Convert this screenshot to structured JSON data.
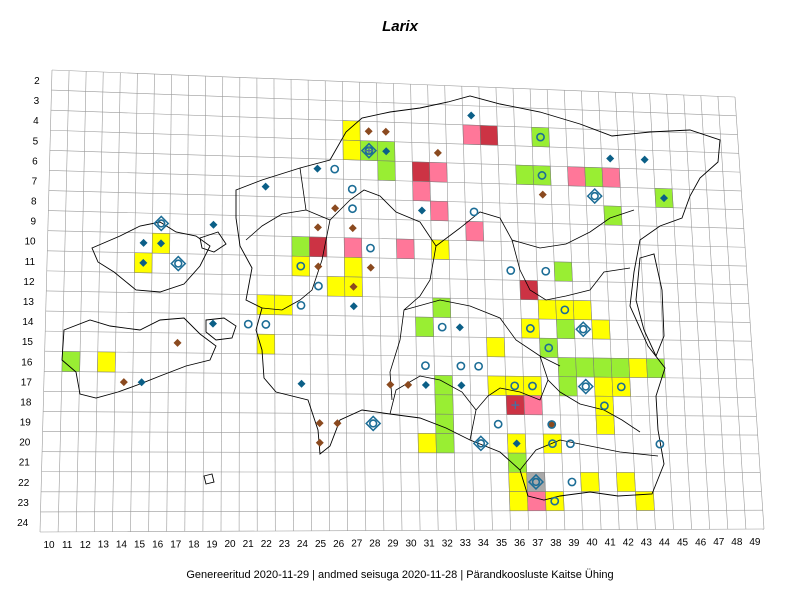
{
  "title": "Larix",
  "footer": "Genereeritud 2020-11-29  |  andmed seisuga 2020-11-28  |  Pärandkoosluste Kaitse Ühing",
  "grid": {
    "columns": [
      10,
      11,
      12,
      13,
      14,
      15,
      16,
      17,
      18,
      19,
      20,
      21,
      22,
      23,
      24,
      25,
      26,
      27,
      28,
      29,
      30,
      31,
      32,
      33,
      34,
      35,
      36,
      37,
      38,
      39,
      40,
      41,
      42,
      43,
      44,
      45,
      46,
      47,
      48,
      49
    ],
    "rows": [
      2,
      3,
      4,
      5,
      6,
      7,
      8,
      9,
      10,
      11,
      12,
      13,
      14,
      15,
      16,
      17,
      18,
      19,
      20,
      21,
      22,
      23,
      24
    ]
  },
  "colors": {
    "yellow": "#ffff00",
    "green": "#99ee33",
    "pink": "#ff7799",
    "red": "#cc3344",
    "gray": "#aaaaaa",
    "diamond_blue": "#0b5f87",
    "diamond_brown": "#8b4a1f",
    "circle_blue": "#1c6d96"
  },
  "squares": [
    {
      "col": 27,
      "row": 4,
      "color": "yellow"
    },
    {
      "col": 27,
      "row": 5,
      "color": "yellow"
    },
    {
      "col": 28,
      "row": 5,
      "color": "green"
    },
    {
      "col": 29,
      "row": 5,
      "color": "green"
    },
    {
      "col": 29,
      "row": 6,
      "color": "green"
    },
    {
      "col": 31,
      "row": 6,
      "color": "red"
    },
    {
      "col": 31,
      "row": 7,
      "color": "pink"
    },
    {
      "col": 32,
      "row": 6,
      "color": "pink"
    },
    {
      "col": 32,
      "row": 8,
      "color": "pink"
    },
    {
      "col": 34,
      "row": 4,
      "color": "pink"
    },
    {
      "col": 35,
      "row": 4,
      "color": "red"
    },
    {
      "col": 34,
      "row": 9,
      "color": "pink"
    },
    {
      "col": 38,
      "row": 4,
      "color": "green"
    },
    {
      "col": 37,
      "row": 6,
      "color": "green"
    },
    {
      "col": 38,
      "row": 6,
      "color": "green"
    },
    {
      "col": 40,
      "row": 6,
      "color": "pink"
    },
    {
      "col": 41,
      "row": 6,
      "color": "green"
    },
    {
      "col": 42,
      "row": 6,
      "color": "pink"
    },
    {
      "col": 42,
      "row": 8,
      "color": "green"
    },
    {
      "col": 45,
      "row": 7,
      "color": "green"
    },
    {
      "col": 25,
      "row": 10,
      "color": "red"
    },
    {
      "col": 24,
      "row": 10,
      "color": "green"
    },
    {
      "col": 27,
      "row": 10,
      "color": "pink"
    },
    {
      "col": 30,
      "row": 10,
      "color": "pink"
    },
    {
      "col": 32,
      "row": 10,
      "color": "yellow"
    },
    {
      "col": 24,
      "row": 11,
      "color": "yellow"
    },
    {
      "col": 27,
      "row": 11,
      "color": "yellow"
    },
    {
      "col": 26,
      "row": 12,
      "color": "yellow"
    },
    {
      "col": 27,
      "row": 12,
      "color": "yellow"
    },
    {
      "col": 16,
      "row": 10,
      "color": "yellow"
    },
    {
      "col": 15,
      "row": 11,
      "color": "yellow"
    },
    {
      "col": 22,
      "row": 13,
      "color": "yellow"
    },
    {
      "col": 23,
      "row": 13,
      "color": "yellow"
    },
    {
      "col": 22,
      "row": 15,
      "color": "yellow"
    },
    {
      "col": 13,
      "row": 16,
      "color": "yellow"
    },
    {
      "col": 11,
      "row": 16,
      "color": "green"
    },
    {
      "col": 37,
      "row": 12,
      "color": "red"
    },
    {
      "col": 39,
      "row": 11,
      "color": "green"
    },
    {
      "col": 38,
      "row": 13,
      "color": "yellow"
    },
    {
      "col": 39,
      "row": 13,
      "color": "yellow"
    },
    {
      "col": 40,
      "row": 13,
      "color": "yellow"
    },
    {
      "col": 32,
      "row": 13,
      "color": "green"
    },
    {
      "col": 31,
      "row": 14,
      "color": "green"
    },
    {
      "col": 37,
      "row": 14,
      "color": "yellow"
    },
    {
      "col": 39,
      "row": 14,
      "color": "green"
    },
    {
      "col": 41,
      "row": 14,
      "color": "yellow"
    },
    {
      "col": 35,
      "row": 15,
      "color": "yellow"
    },
    {
      "col": 38,
      "row": 15,
      "color": "green"
    },
    {
      "col": 39,
      "row": 16,
      "color": "green"
    },
    {
      "col": 40,
      "row": 16,
      "color": "green"
    },
    {
      "col": 41,
      "row": 16,
      "color": "green"
    },
    {
      "col": 42,
      "row": 16,
      "color": "green"
    },
    {
      "col": 43,
      "row": 16,
      "color": "yellow"
    },
    {
      "col": 44,
      "row": 16,
      "color": "green"
    },
    {
      "col": 35,
      "row": 17,
      "color": "yellow"
    },
    {
      "col": 36,
      "row": 17,
      "color": "yellow"
    },
    {
      "col": 37,
      "row": 17,
      "color": "yellow"
    },
    {
      "col": 39,
      "row": 17,
      "color": "green"
    },
    {
      "col": 41,
      "row": 17,
      "color": "yellow"
    },
    {
      "col": 42,
      "row": 17,
      "color": "yellow"
    },
    {
      "col": 32,
      "row": 17,
      "color": "green"
    },
    {
      "col": 32,
      "row": 18,
      "color": "green"
    },
    {
      "col": 36,
      "row": 18,
      "color": "red"
    },
    {
      "col": 37,
      "row": 18,
      "color": "pink"
    },
    {
      "col": 41,
      "row": 18,
      "color": "yellow"
    },
    {
      "col": 32,
      "row": 19,
      "color": "green"
    },
    {
      "col": 41,
      "row": 19,
      "color": "yellow"
    },
    {
      "col": 31,
      "row": 20,
      "color": "yellow"
    },
    {
      "col": 32,
      "row": 20,
      "color": "green"
    },
    {
      "col": 36,
      "row": 20,
      "color": "yellow"
    },
    {
      "col": 38,
      "row": 20,
      "color": "yellow"
    },
    {
      "col": 36,
      "row": 21,
      "color": "green"
    },
    {
      "col": 40,
      "row": 22,
      "color": "yellow"
    },
    {
      "col": 42,
      "row": 22,
      "color": "yellow"
    },
    {
      "col": 36,
      "row": 22,
      "color": "yellow"
    },
    {
      "col": 37,
      "row": 22,
      "color": "gray"
    },
    {
      "col": 36,
      "row": 23,
      "color": "yellow"
    },
    {
      "col": 37,
      "row": 23,
      "color": "pink"
    },
    {
      "col": 38,
      "row": 23,
      "color": "yellow"
    },
    {
      "col": 43,
      "row": 23,
      "color": "yellow"
    }
  ],
  "diamonds_blue": [
    {
      "col": 34,
      "row": 3
    },
    {
      "col": 42,
      "row": 5
    },
    {
      "col": 44,
      "row": 5
    },
    {
      "col": 29,
      "row": 5
    },
    {
      "col": 25,
      "row": 6
    },
    {
      "col": 45,
      "row": 7
    },
    {
      "col": 22,
      "row": 7
    },
    {
      "col": 31,
      "row": 8
    },
    {
      "col": 19,
      "row": 9
    },
    {
      "col": 15,
      "row": 10
    },
    {
      "col": 16,
      "row": 10
    },
    {
      "col": 15,
      "row": 11
    },
    {
      "col": 27,
      "row": 13
    },
    {
      "col": 19,
      "row": 14
    },
    {
      "col": 33,
      "row": 14
    },
    {
      "col": 31,
      "row": 17
    },
    {
      "col": 33,
      "row": 17
    },
    {
      "col": 15,
      "row": 17
    },
    {
      "col": 24,
      "row": 17
    },
    {
      "col": 36,
      "row": 20
    }
  ],
  "diamonds_brown": [
    {
      "col": 28,
      "row": 4
    },
    {
      "col": 29,
      "row": 4
    },
    {
      "col": 32,
      "row": 5
    },
    {
      "col": 38,
      "row": 7
    },
    {
      "col": 26,
      "row": 8
    },
    {
      "col": 25,
      "row": 9
    },
    {
      "col": 27,
      "row": 9
    },
    {
      "col": 25,
      "row": 11
    },
    {
      "col": 28,
      "row": 11
    },
    {
      "col": 27,
      "row": 12
    },
    {
      "col": 17,
      "row": 15
    },
    {
      "col": 14,
      "row": 17
    },
    {
      "col": 29,
      "row": 17
    },
    {
      "col": 30,
      "row": 17
    },
    {
      "col": 25,
      "row": 19
    },
    {
      "col": 26,
      "row": 19
    },
    {
      "col": 25,
      "row": 20
    },
    {
      "col": 38,
      "row": 19
    }
  ],
  "circles": [
    {
      "col": 38,
      "row": 4
    },
    {
      "col": 28,
      "row": 5
    },
    {
      "col": 26,
      "row": 6
    },
    {
      "col": 38,
      "row": 6
    },
    {
      "col": 27,
      "row": 7
    },
    {
      "col": 27,
      "row": 8
    },
    {
      "col": 34,
      "row": 8
    },
    {
      "col": 21,
      "row": 14
    },
    {
      "col": 22,
      "row": 14
    },
    {
      "col": 24,
      "row": 13
    },
    {
      "col": 28,
      "row": 10
    },
    {
      "col": 24,
      "row": 11
    },
    {
      "col": 25,
      "row": 12
    },
    {
      "col": 36,
      "row": 11
    },
    {
      "col": 38,
      "row": 11
    },
    {
      "col": 39,
      "row": 13
    },
    {
      "col": 37,
      "row": 14
    },
    {
      "col": 32,
      "row": 14
    },
    {
      "col": 38,
      "row": 15
    },
    {
      "col": 31,
      "row": 16
    },
    {
      "col": 33,
      "row": 16
    },
    {
      "col": 34,
      "row": 16
    },
    {
      "col": 36,
      "row": 17
    },
    {
      "col": 37,
      "row": 17
    },
    {
      "col": 42,
      "row": 17
    },
    {
      "col": 41,
      "row": 18
    },
    {
      "col": 35,
      "row": 19
    },
    {
      "col": 38,
      "row": 19
    },
    {
      "col": 38,
      "row": 20
    },
    {
      "col": 39,
      "row": 20
    },
    {
      "col": 44,
      "row": 20
    },
    {
      "col": 39,
      "row": 22
    },
    {
      "col": 38,
      "row": 23
    }
  ],
  "circle_diamonds": [
    {
      "col": 16,
      "row": 9
    },
    {
      "col": 17,
      "row": 11
    },
    {
      "col": 28,
      "row": 5
    },
    {
      "col": 41,
      "row": 7
    },
    {
      "col": 40,
      "row": 14
    },
    {
      "col": 40,
      "row": 17
    },
    {
      "col": 28,
      "row": 19
    },
    {
      "col": 34,
      "row": 20
    },
    {
      "col": 37,
      "row": 22
    }
  ],
  "crosses": [
    {
      "col": 28,
      "row": 5
    },
    {
      "col": 36,
      "row": 18
    }
  ]
}
